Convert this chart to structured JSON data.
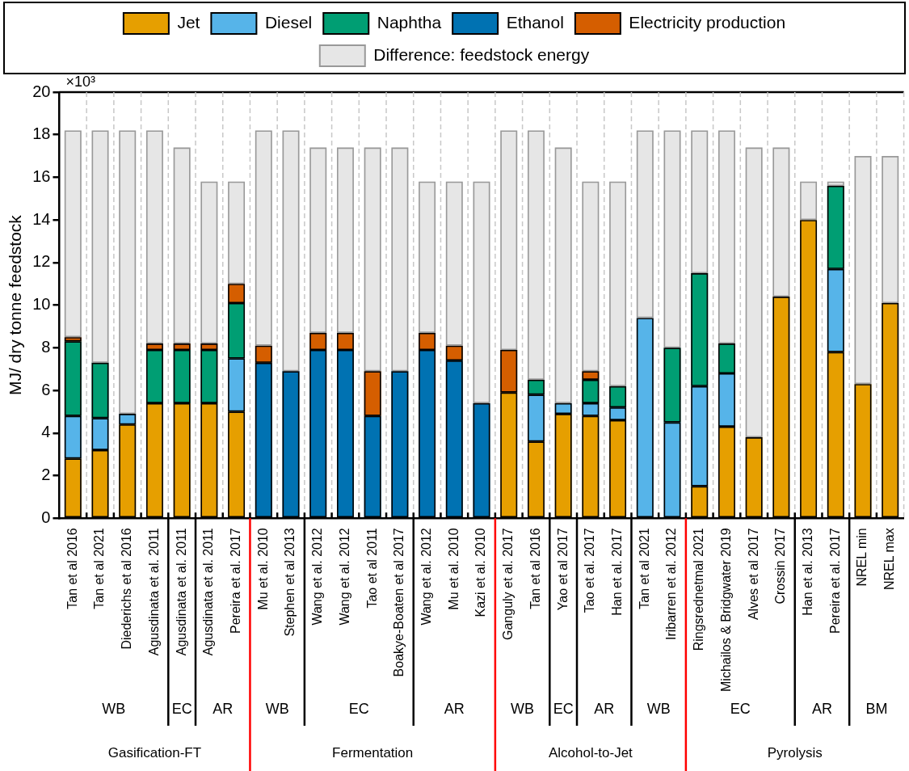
{
  "chart_data": {
    "type": "bar",
    "stacked": true,
    "ylabel": "MJ/ dry tonne feedstock",
    "ylim": [
      0,
      20
    ],
    "yticks": [
      0,
      2,
      4,
      6,
      8,
      10,
      12,
      14,
      16,
      18,
      20
    ],
    "grid": "x",
    "legend": "top",
    "categories": [
      "Tan et al 2016",
      "Tan et al 2021",
      "Diederichs et al 2016",
      "Agusdinata et al. 2011",
      "Agusdinata et al. 2011",
      "Agusdinata et al. 2011",
      "Pereira et al. 2017",
      "Mu et al. 2010",
      "Stephen et al 2013",
      "Wang et al. 2012",
      "Wang et al. 2012",
      "Tao et al 2011",
      "Boakye-Boaten et al 2017",
      "Wang et al. 2012",
      "Mu et al. 2010",
      "Kazi et al. 2010",
      "Ganguly et al. 2017",
      "Tan et al 2016",
      "Yao et al 2017",
      "Tao et al. 2017",
      "Han et al. 2017",
      "Tan et al 2021",
      "Iribarren et al. 2012",
      "Ringsrednetmal 2021",
      "Michailos & Bridgwater 2019",
      "Alves et al 2017",
      "Crossin 2017",
      "Han et al. 2013",
      "Pereira et al. 2017",
      "NREL min",
      "NREL max"
    ],
    "series": [
      {
        "name": "Jet",
        "color": "#e69f00",
        "values": [
          2.8,
          3.2,
          4.4,
          5.4,
          5.4,
          5.4,
          5.0,
          null,
          null,
          null,
          null,
          null,
          null,
          null,
          null,
          null,
          5.9,
          3.6,
          4.9,
          4.8,
          4.6,
          null,
          null,
          1.5,
          4.3,
          3.8,
          10.4,
          14.0,
          7.8,
          6.3,
          10.1
        ]
      },
      {
        "name": "Ethanol",
        "color": "#0072b2",
        "values": [
          null,
          null,
          null,
          null,
          null,
          null,
          null,
          7.3,
          6.9,
          7.9,
          7.9,
          4.8,
          6.9,
          7.9,
          7.4,
          5.4,
          null,
          null,
          null,
          null,
          null,
          null,
          null,
          null,
          null,
          null,
          null,
          null,
          null,
          null,
          null
        ]
      },
      {
        "name": "Diesel",
        "color": "#56b4e9",
        "values": [
          2.0,
          1.5,
          0.5,
          null,
          null,
          null,
          2.5,
          null,
          null,
          null,
          null,
          null,
          null,
          null,
          null,
          null,
          null,
          2.2,
          0.5,
          0.6,
          0.6,
          9.4,
          4.5,
          4.7,
          2.5,
          null,
          null,
          null,
          3.9,
          null,
          null
        ]
      },
      {
        "name": "Naphtha",
        "color": "#009e73",
        "values": [
          3.5,
          2.6,
          null,
          2.5,
          2.5,
          2.5,
          2.6,
          null,
          null,
          null,
          null,
          null,
          null,
          null,
          null,
          null,
          null,
          0.7,
          null,
          1.1,
          1.0,
          null,
          3.5,
          5.3,
          1.4,
          null,
          null,
          null,
          3.9,
          null,
          null
        ]
      },
      {
        "name": "Electricity production",
        "color": "#d55e00",
        "values": [
          0.2,
          null,
          null,
          0.3,
          0.3,
          0.3,
          0.9,
          0.8,
          null,
          0.8,
          0.8,
          2.1,
          null,
          0.8,
          0.7,
          null,
          2.0,
          null,
          null,
          0.4,
          null,
          null,
          null,
          null,
          null,
          null,
          null,
          null,
          null,
          null,
          null
        ]
      },
      {
        "name": "Difference: feedstock energy",
        "color": "#e6e6e6",
        "values": [
          9.7,
          10.9,
          13.3,
          10.0,
          9.2,
          7.6,
          4.8,
          10.1,
          11.3,
          8.7,
          8.7,
          10.5,
          10.5,
          7.1,
          7.7,
          10.4,
          10.3,
          11.7,
          12.0,
          8.9,
          9.6,
          8.8,
          10.2,
          6.7,
          10.0,
          13.6,
          7.0,
          1.8,
          0.2,
          10.7,
          6.9
        ]
      }
    ],
    "annotations": [
      "×10³",
      "WB",
      "EC",
      "AR",
      "WB",
      "EC",
      "AR",
      "WB",
      "EC",
      "AR",
      "WB",
      "EC",
      "AR",
      "BM",
      "Gasification-FT",
      "Fermentation",
      "Alcohol-to-Jet",
      "Pyrolysis"
    ]
  }
}
